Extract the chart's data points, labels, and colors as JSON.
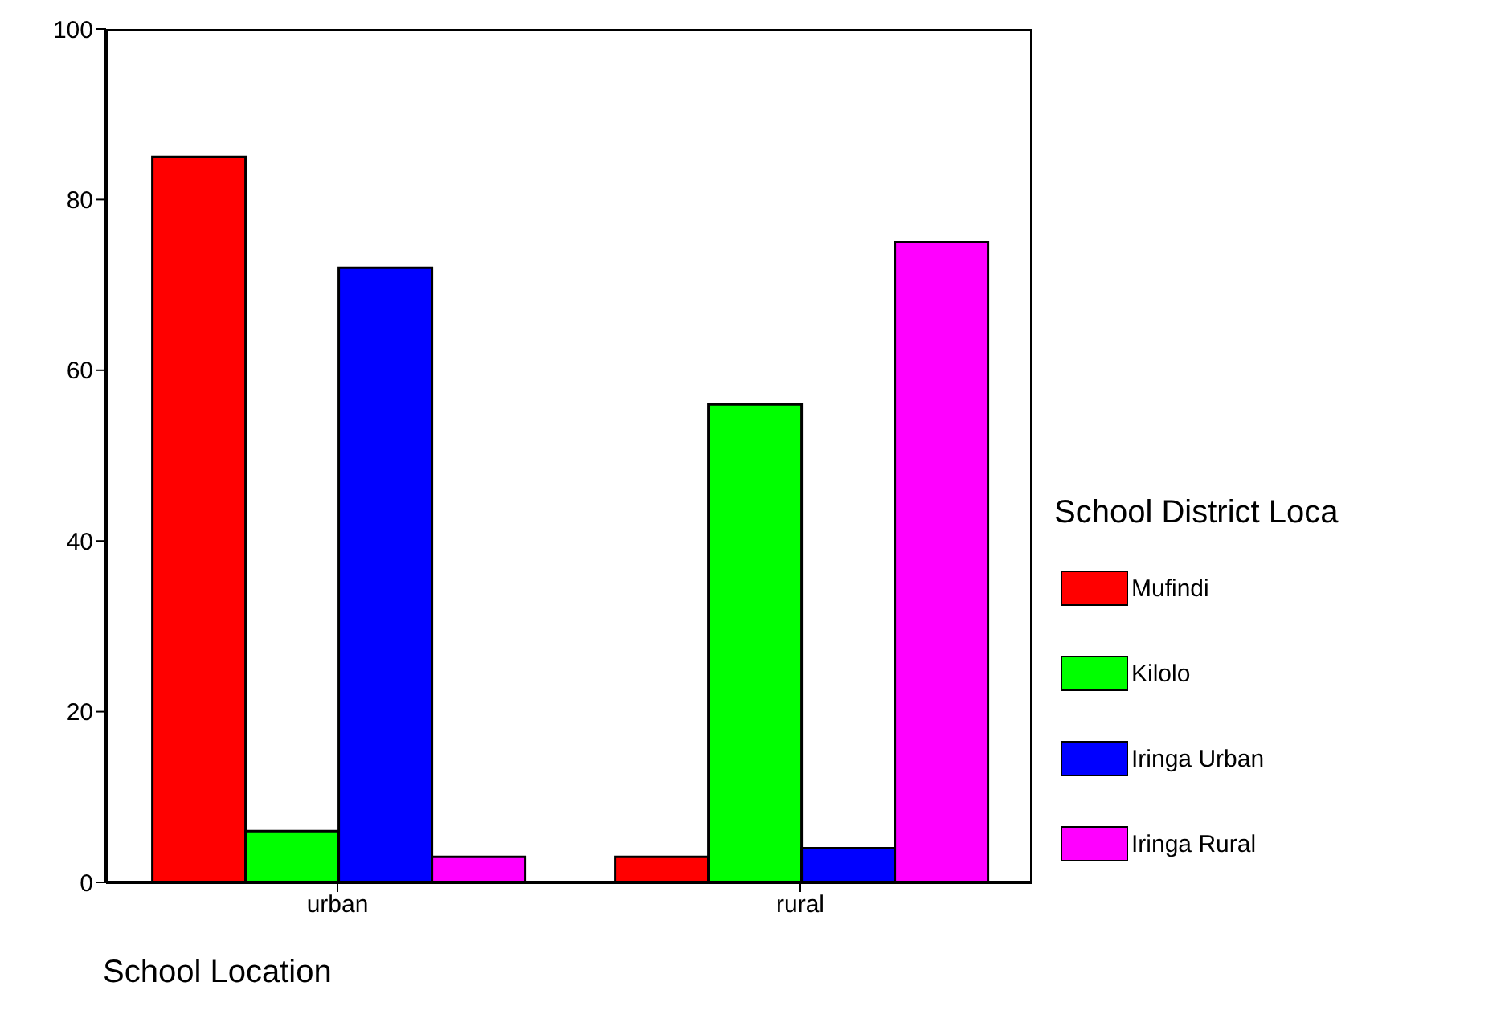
{
  "chart_data": {
    "type": "bar",
    "xlabel": "School Location",
    "legend_title": "School District Loca",
    "categories": [
      "urban",
      "rural"
    ],
    "series": [
      {
        "name": "Mufindi",
        "color": "#ff0000",
        "values": [
          85,
          3
        ]
      },
      {
        "name": "Kilolo",
        "color": "#00ff00",
        "values": [
          6,
          56
        ]
      },
      {
        "name": "Iringa Urban",
        "color": "#0000ff",
        "values": [
          72,
          4
        ]
      },
      {
        "name": "Iringa Rural",
        "color": "#ff00ff",
        "values": [
          3,
          75
        ]
      }
    ],
    "ylim": [
      0,
      100
    ],
    "yticks": [
      0,
      20,
      40,
      60,
      80,
      100
    ],
    "grid": false,
    "legend": "right"
  }
}
